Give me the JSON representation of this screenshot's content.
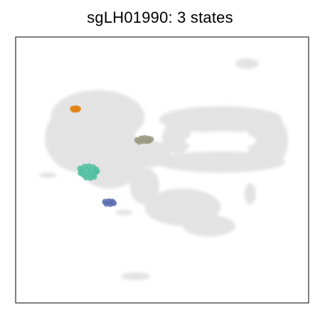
{
  "chart_data": {
    "type": "scatter",
    "title": "sgLH01990: 3 states",
    "xlabel": "",
    "ylabel": "",
    "grid": false,
    "legend": "none",
    "axes_ticks": false,
    "xlim": [
      0,
      1
    ],
    "ylim": [
      0,
      1
    ],
    "background": {
      "color": "#e3e3e3",
      "regions": [
        {
          "name": "main-upper-mass",
          "cx": 0.28,
          "cy": 0.7,
          "rx": 0.16,
          "ry": 0.1
        },
        {
          "name": "main-left-lobe",
          "cx": 0.22,
          "cy": 0.62,
          "rx": 0.12,
          "ry": 0.13
        },
        {
          "name": "main-center-body",
          "cx": 0.32,
          "cy": 0.55,
          "rx": 0.12,
          "ry": 0.12
        },
        {
          "name": "center-bridge",
          "cx": 0.46,
          "cy": 0.56,
          "rx": 0.07,
          "ry": 0.05
        },
        {
          "name": "ring-top",
          "cx": 0.7,
          "cy": 0.69,
          "rx": 0.21,
          "ry": 0.05
        },
        {
          "name": "ring-right",
          "cx": 0.86,
          "cy": 0.61,
          "rx": 0.07,
          "ry": 0.1
        },
        {
          "name": "ring-bottom",
          "cx": 0.7,
          "cy": 0.53,
          "rx": 0.22,
          "ry": 0.04
        },
        {
          "name": "ring-left",
          "cx": 0.55,
          "cy": 0.62,
          "rx": 0.05,
          "ry": 0.06
        },
        {
          "name": "lower-arm",
          "cx": 0.57,
          "cy": 0.36,
          "rx": 0.13,
          "ry": 0.07
        },
        {
          "name": "lower-arm-tail",
          "cx": 0.66,
          "cy": 0.29,
          "rx": 0.09,
          "ry": 0.04
        },
        {
          "name": "lower-stem",
          "cx": 0.44,
          "cy": 0.44,
          "rx": 0.05,
          "ry": 0.07
        },
        {
          "name": "left-small-island",
          "cx": 0.11,
          "cy": 0.48,
          "rx": 0.03,
          "ry": 0.01
        },
        {
          "name": "right-small-streak",
          "cx": 0.8,
          "cy": 0.41,
          "rx": 0.02,
          "ry": 0.04
        },
        {
          "name": "top-right-loop",
          "cx": 0.79,
          "cy": 0.9,
          "rx": 0.04,
          "ry": 0.02
        },
        {
          "name": "bottom-island",
          "cx": 0.41,
          "cy": 0.1,
          "rx": 0.05,
          "ry": 0.015
        },
        {
          "name": "small-lower-island",
          "cx": 0.37,
          "cy": 0.34,
          "rx": 0.03,
          "ry": 0.01
        }
      ]
    },
    "series": [
      {
        "color": "#e08214",
        "points": [
          {
            "x": 0.195,
            "y": 0.73
          },
          {
            "x": 0.205,
            "y": 0.732
          },
          {
            "x": 0.213,
            "y": 0.73
          },
          {
            "x": 0.2,
            "y": 0.726
          },
          {
            "x": 0.21,
            "y": 0.727
          }
        ]
      },
      {
        "color": "#999980",
        "points": [
          {
            "x": 0.415,
            "y": 0.612
          },
          {
            "x": 0.428,
            "y": 0.618
          },
          {
            "x": 0.44,
            "y": 0.62
          },
          {
            "x": 0.452,
            "y": 0.618
          },
          {
            "x": 0.462,
            "y": 0.615
          },
          {
            "x": 0.434,
            "y": 0.609
          },
          {
            "x": 0.447,
            "y": 0.608
          },
          {
            "x": 0.422,
            "y": 0.606
          },
          {
            "x": 0.455,
            "y": 0.61
          }
        ]
      },
      {
        "color": "#4fbf9f",
        "points": [
          {
            "x": 0.22,
            "y": 0.505
          },
          {
            "x": 0.235,
            "y": 0.512
          },
          {
            "x": 0.25,
            "y": 0.514
          },
          {
            "x": 0.265,
            "y": 0.51
          },
          {
            "x": 0.275,
            "y": 0.502
          },
          {
            "x": 0.228,
            "y": 0.495
          },
          {
            "x": 0.244,
            "y": 0.5
          },
          {
            "x": 0.258,
            "y": 0.498
          },
          {
            "x": 0.272,
            "y": 0.49
          },
          {
            "x": 0.232,
            "y": 0.482
          },
          {
            "x": 0.248,
            "y": 0.486
          },
          {
            "x": 0.262,
            "y": 0.482
          },
          {
            "x": 0.24,
            "y": 0.472
          },
          {
            "x": 0.255,
            "y": 0.47
          },
          {
            "x": 0.268,
            "y": 0.474
          },
          {
            "x": 0.222,
            "y": 0.488
          },
          {
            "x": 0.278,
            "y": 0.495
          }
        ]
      },
      {
        "color": "#5a6cb0",
        "points": [
          {
            "x": 0.305,
            "y": 0.38
          },
          {
            "x": 0.318,
            "y": 0.382
          },
          {
            "x": 0.33,
            "y": 0.381
          },
          {
            "x": 0.31,
            "y": 0.373
          },
          {
            "x": 0.323,
            "y": 0.372
          },
          {
            "x": 0.335,
            "y": 0.375
          }
        ]
      }
    ]
  }
}
